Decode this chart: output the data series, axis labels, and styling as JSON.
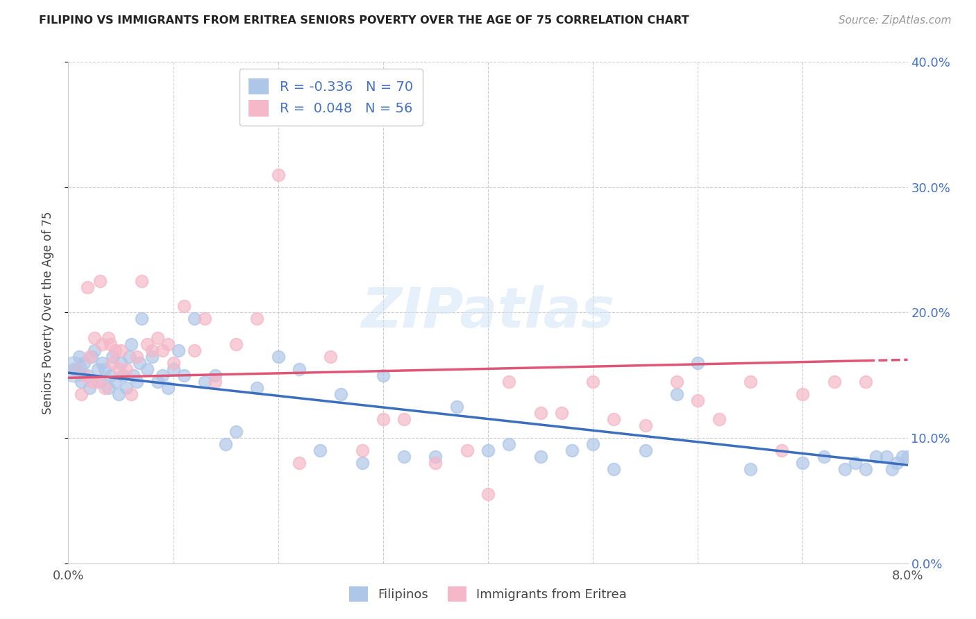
{
  "title": "FILIPINO VS IMMIGRANTS FROM ERITREA SENIORS POVERTY OVER THE AGE OF 75 CORRELATION CHART",
  "source": "Source: ZipAtlas.com",
  "ylabel": "Seniors Poverty Over the Age of 75",
  "xlim": [
    0.0,
    8.0
  ],
  "ylim": [
    0.0,
    40.0
  ],
  "yticks": [
    0,
    10,
    20,
    30,
    40
  ],
  "legend_label1": "Filipinos",
  "legend_label2": "Immigrants from Eritrea",
  "R1": -0.336,
  "N1": 70,
  "R2": 0.048,
  "N2": 56,
  "color_filipino": "#aec6e8",
  "color_eritrea": "#f4b8c8",
  "trendline_filipino": "#3a6fbd",
  "trendline_eritrea": "#e05575",
  "background_color": "#ffffff",
  "fil_intercept": 15.2,
  "fil_slope": -0.92,
  "eri_intercept": 14.8,
  "eri_slope": 0.18,
  "filipino_x": [
    0.05,
    0.1,
    0.12,
    0.15,
    0.18,
    0.2,
    0.22,
    0.25,
    0.28,
    0.3,
    0.32,
    0.35,
    0.38,
    0.4,
    0.42,
    0.45,
    0.48,
    0.5,
    0.52,
    0.55,
    0.58,
    0.6,
    0.62,
    0.65,
    0.68,
    0.7,
    0.75,
    0.8,
    0.85,
    0.9,
    0.95,
    1.0,
    1.05,
    1.1,
    1.2,
    1.3,
    1.4,
    1.5,
    1.6,
    1.8,
    2.0,
    2.2,
    2.4,
    2.6,
    2.8,
    3.0,
    3.2,
    3.5,
    3.7,
    4.0,
    4.2,
    4.5,
    4.8,
    5.0,
    5.2,
    5.5,
    5.8,
    6.0,
    6.5,
    7.0,
    7.2,
    7.4,
    7.5,
    7.6,
    7.7,
    7.8,
    7.85,
    7.9,
    7.95,
    8.0
  ],
  "filipino_y": [
    15.5,
    16.5,
    14.5,
    16.0,
    15.0,
    14.0,
    16.5,
    17.0,
    15.5,
    14.5,
    16.0,
    15.5,
    14.0,
    15.0,
    16.5,
    14.5,
    13.5,
    16.0,
    15.0,
    14.0,
    16.5,
    17.5,
    15.0,
    14.5,
    16.0,
    19.5,
    15.5,
    16.5,
    14.5,
    15.0,
    14.0,
    15.5,
    17.0,
    15.0,
    19.5,
    14.5,
    15.0,
    9.5,
    10.5,
    14.0,
    16.5,
    15.5,
    9.0,
    13.5,
    8.0,
    15.0,
    8.5,
    8.5,
    12.5,
    9.0,
    9.5,
    8.5,
    9.0,
    9.5,
    7.5,
    9.0,
    13.5,
    16.0,
    7.5,
    8.0,
    8.5,
    7.5,
    8.0,
    7.5,
    8.5,
    8.5,
    7.5,
    8.0,
    8.5,
    8.5
  ],
  "eritrea_x": [
    0.08,
    0.12,
    0.15,
    0.18,
    0.2,
    0.22,
    0.25,
    0.28,
    0.3,
    0.32,
    0.35,
    0.38,
    0.4,
    0.42,
    0.45,
    0.48,
    0.5,
    0.55,
    0.6,
    0.65,
    0.7,
    0.75,
    0.8,
    0.85,
    0.9,
    0.95,
    1.0,
    1.1,
    1.2,
    1.3,
    1.4,
    1.6,
    1.8,
    2.0,
    2.2,
    2.5,
    2.8,
    3.0,
    3.2,
    3.5,
    3.8,
    4.0,
    4.2,
    4.5,
    4.7,
    5.0,
    5.2,
    5.5,
    5.8,
    6.0,
    6.2,
    6.5,
    6.8,
    7.0,
    7.3,
    7.6
  ],
  "eritrea_y": [
    15.5,
    13.5,
    15.0,
    22.0,
    16.5,
    14.5,
    18.0,
    14.5,
    22.5,
    17.5,
    14.0,
    18.0,
    17.5,
    16.0,
    17.0,
    15.5,
    17.0,
    15.5,
    13.5,
    16.5,
    22.5,
    17.5,
    17.0,
    18.0,
    17.0,
    17.5,
    16.0,
    20.5,
    17.0,
    19.5,
    14.5,
    17.5,
    19.5,
    31.0,
    8.0,
    16.5,
    9.0,
    11.5,
    11.5,
    8.0,
    9.0,
    5.5,
    14.5,
    12.0,
    12.0,
    14.5,
    11.5,
    11.0,
    14.5,
    13.0,
    11.5,
    14.5,
    9.0,
    13.5,
    14.5,
    14.5
  ]
}
